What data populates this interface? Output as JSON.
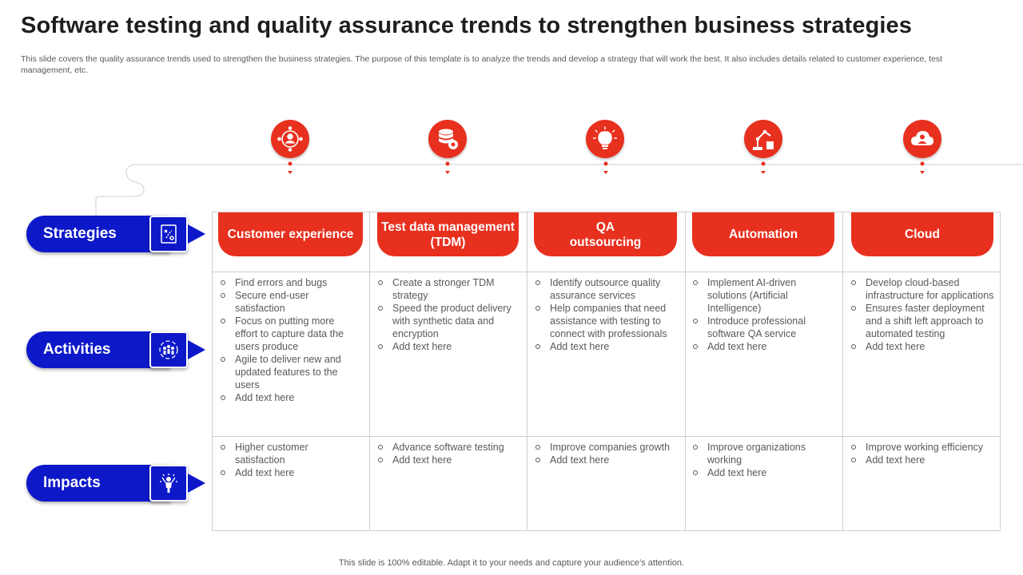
{
  "title": "Software testing and quality assurance trends to strengthen business strategies",
  "subtitle": "This slide covers the quality assurance trends used to strengthen the business strategies. The purpose of this template is to analyze the trends and develop a strategy that will work the best. It also includes details related to customer experience, test management, etc.",
  "footer": "This slide is 100% editable. Adapt it to your needs and capture your audience’s attention.",
  "colors": {
    "accent_red": "#e8301f",
    "accent_blue": "#0d18c9",
    "grid": "#cfcfcf"
  },
  "trend_icons": [
    "customer-network-icon",
    "database-gear-icon",
    "lightbulb-icon",
    "robot-arm-icon",
    "cloud-user-icon"
  ],
  "rows": [
    {
      "label": "Strategies",
      "icon": "strategy-board-icon"
    },
    {
      "label": "Activities",
      "icon": "team-cycle-icon"
    },
    {
      "label": "Impacts",
      "icon": "success-person-icon"
    }
  ],
  "columns": [
    {
      "header": "Customer experience",
      "activities": [
        "Find errors and bugs",
        "Secure end-user satisfaction",
        "Focus on putting more effort to capture data the users produce",
        "Agile to deliver new and updated features to the users",
        "Add text here"
      ],
      "impacts": [
        "Higher customer satisfaction",
        "Add text here"
      ]
    },
    {
      "header": "Test data management (TDM)",
      "activities": [
        "Create a stronger TDM strategy",
        "Speed the product delivery with synthetic data and encryption",
        "Add text here"
      ],
      "impacts": [
        "Advance software testing",
        "Add text here"
      ]
    },
    {
      "header": "QA outsourcing",
      "activities": [
        "Identify outsource quality assurance services",
        "Help companies that need assistance with testing to connect with professionals",
        "Add text here"
      ],
      "impacts": [
        "Improve companies growth",
        "Add text here"
      ]
    },
    {
      "header": "Automation",
      "activities": [
        "Implement AI-driven solutions (Artificial Intelligence)",
        "Introduce professional software QA service",
        "Add text here"
      ],
      "impacts": [
        "Improve organizations working",
        "Add text here"
      ]
    },
    {
      "header": "Cloud",
      "activities": [
        "Develop cloud-based infrastructure for applications",
        "Ensures faster deployment and a shift left approach to automated testing",
        "Add text here"
      ],
      "impacts": [
        "Improve working efficiency",
        "Add text here"
      ]
    }
  ]
}
